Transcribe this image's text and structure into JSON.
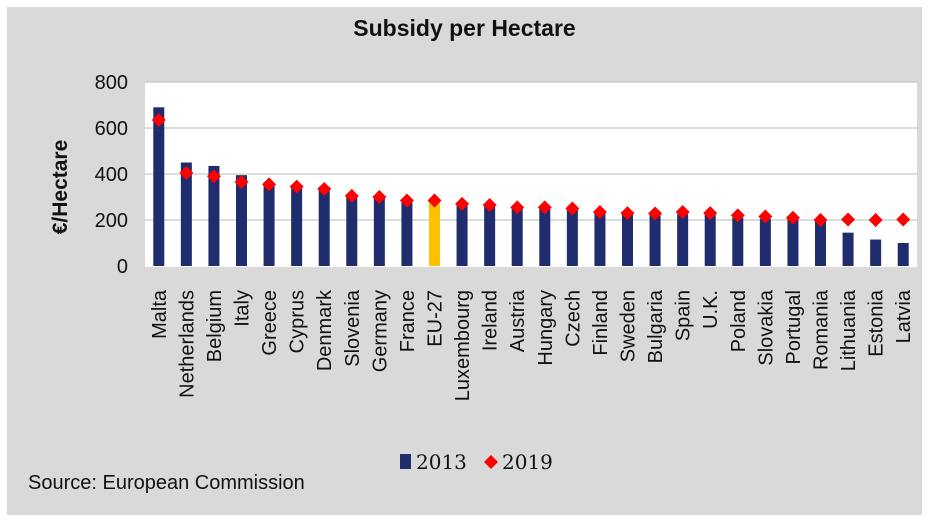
{
  "chart_data": {
    "type": "bar",
    "title": "Subsidy per Hectare",
    "xlabel": "",
    "ylabel": "€/Hectare",
    "ylim": [
      0,
      800
    ],
    "yticks": [
      0,
      200,
      400,
      600,
      800
    ],
    "grid": true,
    "legend_position": "bottom",
    "categories": [
      "Malta",
      "Netherlands",
      "Belgium",
      "Italy",
      "Greece",
      "Cyprus",
      "Denmark",
      "Slovenia",
      "Germany",
      "France",
      "EU-27",
      "Luxembourg",
      "Ireland",
      "Austria",
      "Hungary",
      "Czech",
      "Finland",
      "Sweden",
      "Bulgaria",
      "Spain",
      "U.K.",
      "Poland",
      "Slovakia",
      "Portugal",
      "Romania",
      "Lithuania",
      "Estonia",
      "Latvia"
    ],
    "highlight_category": "EU-27",
    "series": [
      {
        "name": "2013",
        "type": "bar",
        "color": "#1f2d6e",
        "highlight_color": "#ffc000",
        "values": [
          690,
          450,
          435,
          395,
          360,
          350,
          345,
          310,
          305,
          285,
          285,
          272,
          265,
          255,
          255,
          250,
          235,
          230,
          228,
          225,
          225,
          210,
          205,
          205,
          195,
          145,
          115,
          100
        ]
      },
      {
        "name": "2019",
        "type": "marker",
        "color": "#ff0000",
        "values": [
          635,
          405,
          390,
          365,
          355,
          345,
          335,
          305,
          300,
          285,
          285,
          270,
          265,
          255,
          255,
          250,
          235,
          230,
          228,
          235,
          230,
          220,
          215,
          210,
          200,
          202,
          200,
          202
        ]
      }
    ]
  },
  "source": "Source: European Commission"
}
